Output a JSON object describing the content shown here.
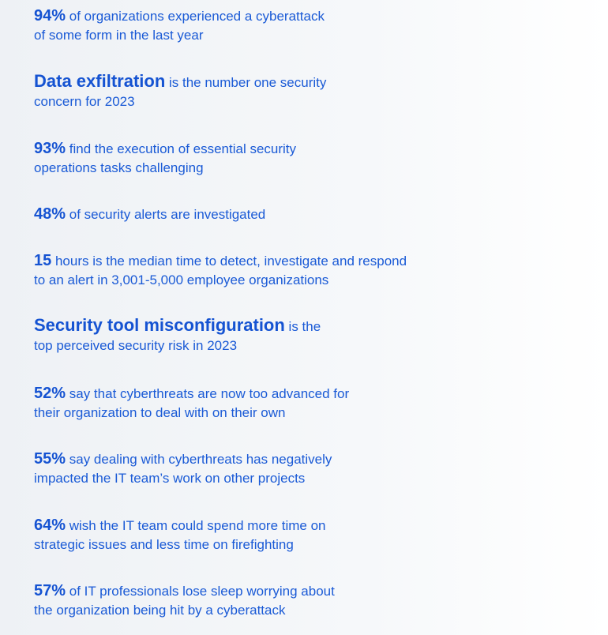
{
  "stats": [
    {
      "highlight": "94%",
      "text": " of organizations experienced a cyberattack",
      "text2": "of some form in the last year"
    },
    {
      "highlight": "Data exfiltration",
      "text": " is the number one security",
      "text2": "concern for 2023"
    },
    {
      "highlight": "93%",
      "text": " find the execution of essential security",
      "text2": "operations tasks challenging"
    },
    {
      "highlight": "48%",
      "text": " of security alerts are investigated",
      "text2": ""
    },
    {
      "highlight": "15",
      "text": " hours is the median time to detect, investigate and respond",
      "text2": "to an alert in 3,001-5,000 employee organizations"
    },
    {
      "highlight": "Security tool misconfiguration",
      "text": " is the",
      "text2": "top perceived security risk in 2023"
    },
    {
      "highlight": "52%",
      "text": " say that cyberthreats are now too advanced for",
      "text2": "their organization to deal with on their own"
    },
    {
      "highlight": "55%",
      "text": " say dealing with cyberthreats has negatively",
      "text2": "impacted the IT team’s work on other projects"
    },
    {
      "highlight": "64%",
      "text": " wish the IT team could spend more time on",
      "text2": "strategic issues and less time on firefighting"
    },
    {
      "highlight": "57%",
      "text": " of IT professionals lose sleep worrying about",
      "text2": "the organization being hit by a cyberattack"
    }
  ]
}
